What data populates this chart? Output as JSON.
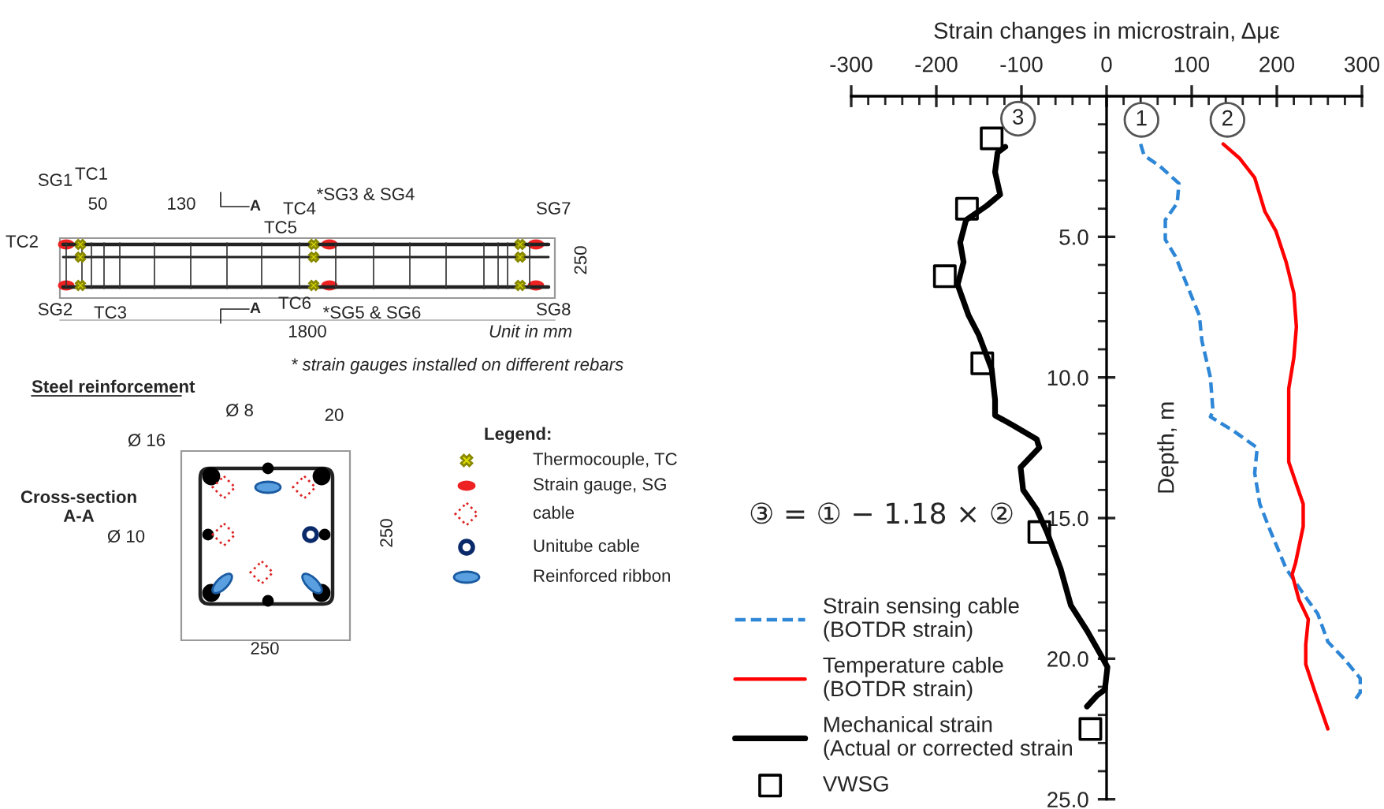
{
  "chart_data": [
    {
      "type": "other",
      "title": "Steel reinforcement",
      "annotations": [
        "SG1",
        "TC1",
        "50",
        "130",
        "A",
        "A",
        "TC4",
        "*SG3 & SG4",
        "SG7",
        "TC2",
        "TC5",
        "250",
        "SG2",
        "TC3",
        "TC6",
        "*SG5 & SG6",
        "SG8",
        "1800",
        "Unit in mm",
        "* strain gauges installed on different rebars",
        "Ø 8",
        "20",
        "Ø 16",
        "Cross-section\nA-A",
        "Ø 10",
        "250",
        "250",
        "Legend:",
        "Thermocouple, TC",
        "Strain gauge, SG",
        "cable",
        "Unitube cable",
        "Reinforced ribbon"
      ]
    },
    {
      "type": "line",
      "xlabel": "Strain changes in microstrain, Δμε",
      "ylabel": "Depth, m",
      "xlim": [
        -300,
        300
      ],
      "ylim": [
        25,
        0
      ],
      "xticks": [
        -300,
        {
          "value": -280,
          "label": null
        },
        {
          "value": -260,
          "label": null
        },
        {
          "value": -240,
          "label": null
        },
        {
          "value": -220,
          "label": null
        },
        -200,
        {
          "value": -180,
          "label": null
        },
        {
          "value": -160,
          "label": null
        },
        {
          "value": -140,
          "label": null
        },
        {
          "value": -120,
          "label": null
        },
        -100,
        {
          "value": -80,
          "label": null
        },
        {
          "value": -60,
          "label": null
        },
        {
          "value": -40,
          "label": null
        },
        {
          "value": -20,
          "label": null
        },
        0,
        {
          "value": 20,
          "label": null
        },
        {
          "value": 40,
          "label": null
        },
        {
          "value": 60,
          "label": null
        },
        {
          "value": 80,
          "label": null
        },
        100,
        {
          "value": 120,
          "label": null
        },
        {
          "value": 140,
          "label": null
        },
        {
          "value": 160,
          "label": null
        },
        {
          "value": 180,
          "label": null
        },
        200,
        {
          "value": 220,
          "label": null
        },
        {
          "value": 240,
          "label": null
        },
        {
          "value": 260,
          "label": null
        },
        {
          "value": 280,
          "label": null
        },
        300
      ],
      "yticks": [
        {
          "value": 1,
          "label": null
        },
        {
          "value": 2,
          "label": null
        },
        {
          "value": 3,
          "label": null
        },
        {
          "value": 4,
          "label": null
        },
        {
          "value": 5,
          "label": "5.0"
        },
        {
          "value": 6,
          "label": null
        },
        {
          "value": 7,
          "label": null
        },
        {
          "value": 8,
          "label": null
        },
        {
          "value": 9,
          "label": null
        },
        {
          "value": 10,
          "label": "10.0"
        },
        {
          "value": 11,
          "label": null
        },
        {
          "value": 12,
          "label": null
        },
        {
          "value": 13,
          "label": null
        },
        {
          "value": 14,
          "label": null
        },
        {
          "value": 15,
          "label": "15.0"
        },
        {
          "value": 16,
          "label": null
        },
        {
          "value": 17,
          "label": null
        },
        {
          "value": 18,
          "label": null
        },
        {
          "value": 19,
          "label": null
        },
        {
          "value": 20,
          "label": "20.0"
        },
        {
          "value": 21,
          "label": null
        },
        {
          "value": 22,
          "label": null
        },
        {
          "value": 23,
          "label": null
        },
        {
          "value": 24,
          "label": null
        },
        {
          "value": 25,
          "label": "25.0"
        }
      ],
      "grid": false,
      "legend": "bottom left",
      "series": [
        {
          "name": "Strain sensing cable\n(BOTDR strain)",
          "type": "line",
          "color": "#2e86d6",
          "line_style": "dashed",
          "x": [
            40,
            44,
            63,
            85,
            83,
            69,
            69,
            81,
            97,
            109,
            112,
            122,
            125,
            122,
            149,
            177,
            174,
            180,
            193,
            211,
            236,
            248,
            260,
            279,
            298,
            298,
            291
          ],
          "values": [
            1.7,
            2.1,
            2.5,
            3.1,
            3.8,
            4.4,
            5.1,
            5.7,
            6.9,
            7.8,
            8.7,
            10.0,
            11.2,
            11.4,
            11.9,
            12.5,
            13.4,
            14.5,
            15.5,
            16.8,
            17.9,
            18.4,
            19.4,
            20.0,
            20.7,
            21.2,
            21.5
          ]
        },
        {
          "name": "Temperature cable\n(BOTDR strain)",
          "type": "line",
          "color": "#ff0000",
          "line_style": "solid",
          "x": [
            137,
            156,
            174,
            186,
            199,
            211,
            220,
            223,
            220,
            214,
            214,
            214,
            223,
            231,
            231,
            222,
            218,
            226,
            237,
            234,
            234,
            245,
            260
          ],
          "values": [
            1.7,
            2.2,
            2.9,
            4.1,
            4.8,
            5.9,
            7.0,
            8.2,
            9.3,
            10.4,
            12.5,
            13.0,
            13.8,
            14.5,
            15.3,
            16.6,
            17.0,
            17.9,
            18.6,
            19.5,
            20.2,
            21.2,
            22.5
          ]
        },
        {
          "name": "Mechanical strain\n(Actual or corrected strain",
          "type": "line",
          "color": "#000000",
          "line_style": "solid",
          "x": [
            -119,
            -128,
            -131,
            -125,
            -141,
            -165,
            -172,
            -168,
            -175,
            -162,
            -150,
            -135,
            -131,
            -131,
            -110,
            -82,
            -79,
            -101,
            -98,
            -82,
            -70,
            -54,
            -42,
            -23,
            -8,
            1,
            -2,
            -11,
            -23
          ],
          "values": [
            1.8,
            2.0,
            2.7,
            3.5,
            3.9,
            4.4,
            5.2,
            5.9,
            6.7,
            7.8,
            8.5,
            9.7,
            10.8,
            11.35,
            11.7,
            12.2,
            12.5,
            13.2,
            14.0,
            14.7,
            15.5,
            16.8,
            18.1,
            19.0,
            19.8,
            20.3,
            21.1,
            21.3,
            21.7
          ]
        },
        {
          "name": "VWSG",
          "type": "scatter",
          "marker": "square",
          "color": "#000000",
          "x": [
            -135,
            -164,
            -190,
            -146,
            -79,
            -19
          ],
          "values": [
            1.5,
            4.0,
            6.4,
            9.5,
            15.5,
            22.5
          ]
        }
      ],
      "annotations": [
        "③ = ① − 1.18 × ②",
        {
          "text": "3",
          "x": -104,
          "y": 0.8
        },
        {
          "text": "1",
          "x": 41,
          "y": 0.84
        },
        {
          "text": "2",
          "x": 142,
          "y": 0.84
        }
      ]
    }
  ]
}
